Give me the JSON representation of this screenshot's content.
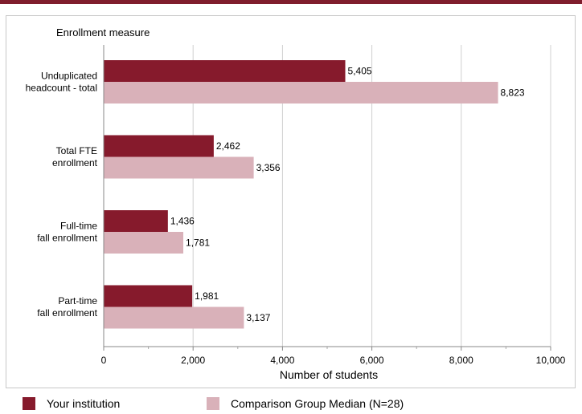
{
  "chart_data": {
    "type": "bar",
    "orientation": "horizontal",
    "title": "Enrollment measure",
    "xlabel": "Number of students",
    "categories": [
      [
        "Unduplicated",
        "headcount - total"
      ],
      [
        "Total FTE",
        "enrollment"
      ],
      [
        "Full-time",
        "fall enrollment"
      ],
      [
        "Part-time",
        "fall enrollment"
      ]
    ],
    "series": [
      {
        "name": "Your institution",
        "color": "#861a2c",
        "values": [
          5405,
          2462,
          1436,
          1981
        ],
        "labels": [
          "5,405",
          "2,462",
          "1,436",
          "1,981"
        ]
      },
      {
        "name": "Comparison Group Median (N=28)",
        "color": "#d9b1b9",
        "values": [
          8823,
          3356,
          1781,
          3137
        ],
        "labels": [
          "8,823",
          "3,356",
          "1,781",
          "3,137"
        ]
      }
    ],
    "xlim": [
      0,
      10000
    ],
    "xticks": [
      0,
      2000,
      4000,
      6000,
      8000,
      10000
    ],
    "xtick_labels": [
      "0",
      "2,000",
      "4,000",
      "6,000",
      "8,000",
      "10,000"
    ],
    "grid": "vertical",
    "legend_position": "bottom"
  },
  "accent_color": "#7f1d2d"
}
